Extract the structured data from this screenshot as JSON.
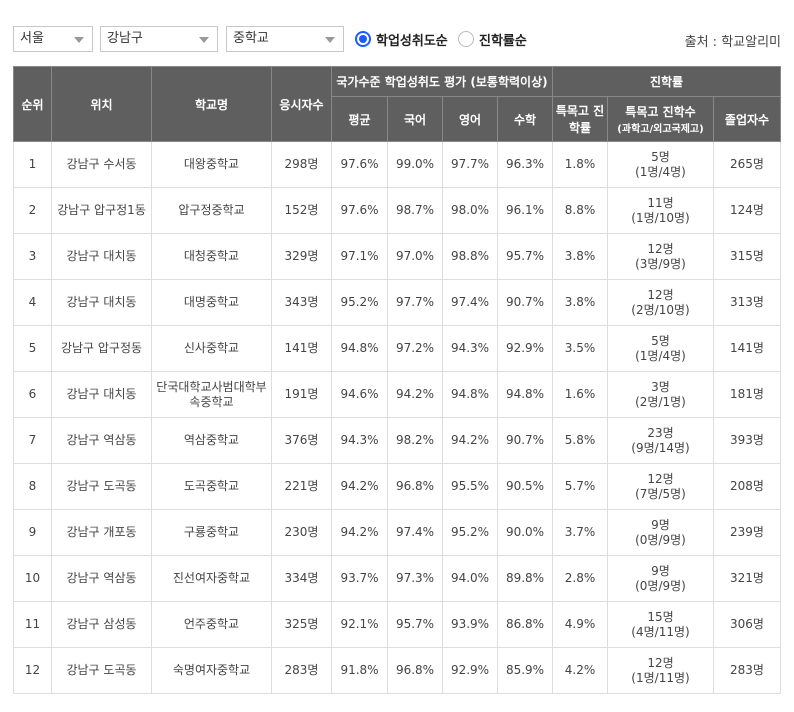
{
  "filters": {
    "region": "서울",
    "district": "강남구",
    "level": "중학교"
  },
  "sort_options": [
    {
      "label": "학업성취도순",
      "checked": true
    },
    {
      "label": "진학률순",
      "checked": false
    }
  ],
  "source": "출처 : 학교알리미",
  "table": {
    "headers": {
      "rank": "순위",
      "location": "위치",
      "school": "학교명",
      "examinees": "응시자수",
      "national_group": "국가수준 학업성취도 평가 (보통학력이상)",
      "average": "평균",
      "korean": "국어",
      "english": "영어",
      "math": "수학",
      "progress_group": "진학률",
      "special_rate": "특목고 진학률",
      "special_count": "특목고 진학수",
      "special_count_sub": "(과학고/외고국제고)",
      "graduates": "졸업자수"
    },
    "rows": [
      {
        "rank": "1",
        "location": "강남구 수서동",
        "school": "대왕중학교",
        "examinees": "298명",
        "average": "97.6%",
        "korean": "99.0%",
        "english": "97.7%",
        "math": "96.3%",
        "special_rate": "1.8%",
        "special_count": "5명",
        "special_detail": "(1명/4명)",
        "graduates": "265명"
      },
      {
        "rank": "2",
        "location": "강남구 압구정1동",
        "school": "압구정중학교",
        "examinees": "152명",
        "average": "97.6%",
        "korean": "98.7%",
        "english": "98.0%",
        "math": "96.1%",
        "special_rate": "8.8%",
        "special_count": "11명",
        "special_detail": "(1명/10명)",
        "graduates": "124명"
      },
      {
        "rank": "3",
        "location": "강남구 대치동",
        "school": "대청중학교",
        "examinees": "329명",
        "average": "97.1%",
        "korean": "97.0%",
        "english": "98.8%",
        "math": "95.7%",
        "special_rate": "3.8%",
        "special_count": "12명",
        "special_detail": "(3명/9명)",
        "graduates": "315명"
      },
      {
        "rank": "4",
        "location": "강남구 대치동",
        "school": "대명중학교",
        "examinees": "343명",
        "average": "95.2%",
        "korean": "97.7%",
        "english": "97.4%",
        "math": "90.7%",
        "special_rate": "3.8%",
        "special_count": "12명",
        "special_detail": "(2명/10명)",
        "graduates": "313명"
      },
      {
        "rank": "5",
        "location": "강남구 압구정동",
        "school": "신사중학교",
        "examinees": "141명",
        "average": "94.8%",
        "korean": "97.2%",
        "english": "94.3%",
        "math": "92.9%",
        "special_rate": "3.5%",
        "special_count": "5명",
        "special_detail": "(1명/4명)",
        "graduates": "141명"
      },
      {
        "rank": "6",
        "location": "강남구 대치동",
        "school": "단국대학교사범대학부속중학교",
        "examinees": "191명",
        "average": "94.6%",
        "korean": "94.2%",
        "english": "94.8%",
        "math": "94.8%",
        "special_rate": "1.6%",
        "special_count": "3명",
        "special_detail": "(2명/1명)",
        "graduates": "181명"
      },
      {
        "rank": "7",
        "location": "강남구 역삼동",
        "school": "역삼중학교",
        "examinees": "376명",
        "average": "94.3%",
        "korean": "98.2%",
        "english": "94.2%",
        "math": "90.7%",
        "special_rate": "5.8%",
        "special_count": "23명",
        "special_detail": "(9명/14명)",
        "graduates": "393명"
      },
      {
        "rank": "8",
        "location": "강남구 도곡동",
        "school": "도곡중학교",
        "examinees": "221명",
        "average": "94.2%",
        "korean": "96.8%",
        "english": "95.5%",
        "math": "90.5%",
        "special_rate": "5.7%",
        "special_count": "12명",
        "special_detail": "(7명/5명)",
        "graduates": "208명"
      },
      {
        "rank": "9",
        "location": "강남구 개포동",
        "school": "구룡중학교",
        "examinees": "230명",
        "average": "94.2%",
        "korean": "97.4%",
        "english": "95.2%",
        "math": "90.0%",
        "special_rate": "3.7%",
        "special_count": "9명",
        "special_detail": "(0명/9명)",
        "graduates": "239명"
      },
      {
        "rank": "10",
        "location": "강남구 역삼동",
        "school": "진선여자중학교",
        "examinees": "334명",
        "average": "93.7%",
        "korean": "97.3%",
        "english": "94.0%",
        "math": "89.8%",
        "special_rate": "2.8%",
        "special_count": "9명",
        "special_detail": "(0명/9명)",
        "graduates": "321명"
      },
      {
        "rank": "11",
        "location": "강남구 삼성동",
        "school": "언주중학교",
        "examinees": "325명",
        "average": "92.1%",
        "korean": "95.7%",
        "english": "93.9%",
        "math": "86.8%",
        "special_rate": "4.9%",
        "special_count": "15명",
        "special_detail": "(4명/11명)",
        "graduates": "306명"
      },
      {
        "rank": "12",
        "location": "강남구 도곡동",
        "school": "숙명여자중학교",
        "examinees": "283명",
        "average": "91.8%",
        "korean": "96.8%",
        "english": "92.9%",
        "math": "85.9%",
        "special_rate": "4.2%",
        "special_count": "12명",
        "special_detail": "(1명/11명)",
        "graduates": "283명"
      }
    ]
  }
}
